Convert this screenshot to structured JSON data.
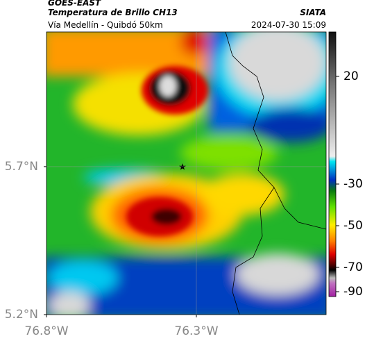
{
  "header": {
    "source": "GOES-EAST",
    "title": "Temperatura de Brillo CH13",
    "subtitle": "Vía Medellín - Quibdó 50km",
    "credit": "SIATA",
    "datetime": "2024-07-30 15:09"
  },
  "map": {
    "xlim": [
      -76.8,
      -75.867
    ],
    "ylim": [
      5.2,
      6.155
    ],
    "xticks": [
      {
        "value": -76.8,
        "label": "76.8°W"
      },
      {
        "value": -76.3,
        "label": "76.3°W"
      }
    ],
    "yticks": [
      {
        "value": 5.7,
        "label": "5.7°N"
      },
      {
        "value": 5.2,
        "label": "5.2°N"
      }
    ]
  },
  "colorbar": {
    "ticks": [
      20,
      -30,
      -50,
      -70,
      -90
    ]
  }
}
